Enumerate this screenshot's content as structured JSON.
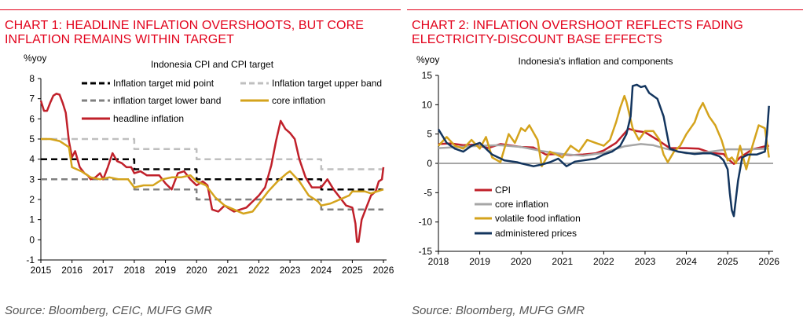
{
  "charts": [
    {
      "heading": "CHART 1: HEADLINE INFLATION OVERSHOOTS, BUT CORE INFLATION REMAINS WITHIN TARGET",
      "source": "Source: Bloomberg, CEIC, MUFG GMR"
    },
    {
      "heading": "CHART 2: INFLATION OVERSHOOT REFLECTS FADING ELECTRICITY-DISCOUNT BASE EFFECTS",
      "source": "Source: Bloomberg, MUFG GMR"
    }
  ],
  "colors": {
    "accent": "#e2001a",
    "headline": "#c0202a",
    "core_gold": "#d4a31c",
    "target_mid": "#000000",
    "target_upper": "#bfbfbf",
    "target_lower": "#808080",
    "core_grey": "#a6a6a6",
    "administered": "#13355e"
  },
  "chart_data": [
    {
      "type": "line",
      "title": "Indonesia CPI and CPI target",
      "ylabel": "%yoy",
      "ylim": [
        -1,
        8
      ],
      "xlim": [
        2015,
        2026.1
      ],
      "yticks": [
        -1,
        0,
        1,
        2,
        3,
        4,
        5,
        6,
        7,
        8
      ],
      "xticks": [
        "2015",
        "2016",
        "2017",
        "2018",
        "2019",
        "2020",
        "2021",
        "2022",
        "2023",
        "2024",
        "2025",
        "2026"
      ],
      "legend": "top",
      "series": [
        {
          "name": "Inflation target mid point",
          "style": "dashed",
          "color": "#000000",
          "x": [
            2015.0,
            2018.0,
            2018.0,
            2020.0,
            2020.0,
            2024.0,
            2024.0,
            2026.0
          ],
          "y": [
            4,
            4,
            3.5,
            3.5,
            3,
            3,
            2.5,
            2.5
          ]
        },
        {
          "name": "Inflation target upper band",
          "style": "dashed",
          "color": "#bfbfbf",
          "x": [
            2015.0,
            2018.0,
            2018.0,
            2020.0,
            2020.0,
            2024.0,
            2024.0,
            2026.0
          ],
          "y": [
            5,
            5,
            4.5,
            4.5,
            4,
            4,
            3.5,
            3.5
          ]
        },
        {
          "name": "inflation target lower band",
          "style": "dashed",
          "color": "#808080",
          "x": [
            2015.0,
            2018.0,
            2018.0,
            2020.0,
            2020.0,
            2024.0,
            2024.0,
            2026.0
          ],
          "y": [
            3,
            3,
            2.5,
            2.5,
            2,
            2,
            1.5,
            1.5
          ]
        },
        {
          "name": "headline inflation",
          "style": "solid",
          "color": "#c0202a",
          "x": [
            2015.0,
            2015.1,
            2015.2,
            2015.3,
            2015.4,
            2015.5,
            2015.6,
            2015.7,
            2015.8,
            2015.9,
            2016.0,
            2016.1,
            2016.25,
            2016.4,
            2016.5,
            2016.6,
            2016.75,
            2016.9,
            2017.0,
            2017.15,
            2017.3,
            2017.45,
            2017.6,
            2017.75,
            2017.9,
            2018.0,
            2018.2,
            2018.4,
            2018.6,
            2018.8,
            2019.0,
            2019.2,
            2019.4,
            2019.6,
            2019.8,
            2020.0,
            2020.2,
            2020.35,
            2020.5,
            2020.7,
            2020.9,
            2021.0,
            2021.2,
            2021.4,
            2021.6,
            2021.8,
            2022.0,
            2022.2,
            2022.4,
            2022.55,
            2022.7,
            2022.85,
            2023.0,
            2023.15,
            2023.3,
            2023.5,
            2023.7,
            2023.9,
            2024.0,
            2024.2,
            2024.4,
            2024.6,
            2024.8,
            2025.0,
            2025.1,
            2025.15,
            2025.2,
            2025.3,
            2025.45,
            2025.6,
            2025.75,
            2025.85,
            2025.95,
            2026.0
          ],
          "y": [
            6.9,
            6.4,
            6.4,
            6.8,
            7.15,
            7.25,
            7.2,
            6.8,
            6.3,
            4.9,
            4.1,
            4.4,
            3.6,
            3.3,
            3.2,
            3.0,
            3.1,
            3.3,
            3.0,
            3.6,
            4.3,
            3.9,
            3.8,
            3.6,
            3.6,
            3.3,
            3.4,
            3.2,
            3.2,
            3.2,
            2.8,
            2.5,
            3.3,
            3.4,
            3.0,
            2.7,
            2.9,
            2.7,
            1.5,
            1.4,
            1.7,
            1.6,
            1.4,
            1.5,
            1.6,
            1.9,
            2.2,
            2.6,
            3.7,
            4.9,
            5.9,
            5.5,
            5.3,
            5.0,
            4.0,
            3.1,
            2.6,
            2.6,
            2.6,
            3.0,
            2.5,
            2.1,
            1.7,
            1.6,
            0.8,
            -0.1,
            -0.1,
            1.0,
            1.6,
            2.2,
            2.4,
            2.9,
            3.0,
            3.6
          ]
        },
        {
          "name": "core inflation",
          "style": "solid",
          "color": "#d4a31c",
          "x": [
            2015.0,
            2015.3,
            2015.6,
            2015.9,
            2016.0,
            2016.3,
            2016.6,
            2016.9,
            2017.2,
            2017.5,
            2017.8,
            2018.0,
            2018.3,
            2018.6,
            2018.9,
            2019.2,
            2019.5,
            2019.8,
            2020.0,
            2020.3,
            2020.6,
            2020.9,
            2021.2,
            2021.5,
            2021.8,
            2022.0,
            2022.3,
            2022.6,
            2022.9,
            2023.0,
            2023.3,
            2023.6,
            2023.9,
            2024.0,
            2024.3,
            2024.6,
            2024.9,
            2025.0,
            2025.2,
            2025.4,
            2025.6,
            2025.8,
            2026.0
          ],
          "y": [
            5.0,
            5.0,
            4.9,
            4.6,
            3.6,
            3.4,
            3.1,
            3.0,
            3.1,
            3.0,
            3.0,
            2.6,
            2.7,
            2.7,
            3.0,
            3.1,
            3.1,
            3.2,
            2.9,
            2.7,
            2.1,
            1.7,
            1.5,
            1.3,
            1.4,
            1.8,
            2.4,
            2.9,
            3.3,
            3.4,
            2.9,
            2.2,
            1.9,
            1.7,
            1.8,
            2.0,
            2.2,
            2.4,
            2.4,
            2.4,
            2.3,
            2.4,
            2.5
          ]
        }
      ]
    },
    {
      "type": "line",
      "title": "Indonesia's inflation and components",
      "ylabel": "%yoy",
      "ylim": [
        -15,
        15
      ],
      "xlim": [
        2018,
        2026.1
      ],
      "yticks": [
        -15,
        -10,
        -5,
        0,
        5,
        10,
        15
      ],
      "xticks": [
        "2018",
        "2019",
        "2020",
        "2021",
        "2022",
        "2023",
        "2024",
        "2025",
        "2026"
      ],
      "legend": "bottom-left",
      "series": [
        {
          "name": "CPI",
          "color": "#c0202a",
          "x": [
            2018.0,
            2018.3,
            2018.6,
            2018.9,
            2019.2,
            2019.5,
            2019.8,
            2020.0,
            2020.3,
            2020.6,
            2020.9,
            2021.2,
            2021.5,
            2021.8,
            2022.0,
            2022.3,
            2022.6,
            2022.8,
            2023.0,
            2023.3,
            2023.6,
            2023.9,
            2024.0,
            2024.3,
            2024.6,
            2024.9,
            2025.0,
            2025.15,
            2025.3,
            2025.6,
            2025.9,
            2026.0
          ],
          "y": [
            3.3,
            3.4,
            3.1,
            3.2,
            2.6,
            3.3,
            3.0,
            2.8,
            2.7,
            1.5,
            1.6,
            1.4,
            1.5,
            1.7,
            2.2,
            3.5,
            5.9,
            5.5,
            5.3,
            4.0,
            2.6,
            2.6,
            2.6,
            2.5,
            1.8,
            1.6,
            0.8,
            -0.1,
            1.0,
            2.4,
            2.9,
            3.0
          ]
        },
        {
          "name": "core inflation",
          "color": "#a6a6a6",
          "x": [
            2018.0,
            2018.5,
            2019.0,
            2019.5,
            2020.0,
            2020.5,
            2021.0,
            2021.5,
            2022.0,
            2022.5,
            2022.9,
            2023.2,
            2023.5,
            2024.0,
            2024.5,
            2025.0,
            2025.5,
            2026.0
          ],
          "y": [
            2.6,
            2.8,
            3.0,
            3.1,
            2.8,
            2.1,
            1.6,
            1.3,
            1.8,
            2.9,
            3.3,
            3.1,
            2.5,
            1.7,
            1.9,
            2.4,
            2.4,
            2.5
          ]
        },
        {
          "name": "volatile food inflation",
          "color": "#d4a31c",
          "x": [
            2018.0,
            2018.2,
            2018.4,
            2018.6,
            2018.8,
            2019.0,
            2019.15,
            2019.3,
            2019.5,
            2019.7,
            2019.85,
            2020.0,
            2020.1,
            2020.2,
            2020.4,
            2020.5,
            2020.7,
            2020.85,
            2021.0,
            2021.2,
            2021.4,
            2021.6,
            2021.8,
            2022.0,
            2022.15,
            2022.3,
            2022.4,
            2022.5,
            2022.55,
            2022.7,
            2022.85,
            2023.0,
            2023.2,
            2023.35,
            2023.45,
            2023.55,
            2023.7,
            2023.85,
            2024.0,
            2024.2,
            2024.3,
            2024.4,
            2024.55,
            2024.7,
            2024.85,
            2025.0,
            2025.1,
            2025.2,
            2025.3,
            2025.45,
            2025.6,
            2025.75,
            2025.9,
            2026.0
          ],
          "y": [
            3.0,
            4.5,
            3.0,
            2.5,
            4.0,
            2.5,
            4.5,
            1.0,
            0.2,
            5.0,
            3.5,
            6.0,
            5.5,
            6.5,
            4.0,
            -0.5,
            2.0,
            1.5,
            1.0,
            3.0,
            2.0,
            4.0,
            3.5,
            3.0,
            4.0,
            7.0,
            9.5,
            11.5,
            10.5,
            6.0,
            4.0,
            5.5,
            5.5,
            4.0,
            1.5,
            0.2,
            2.0,
            3.0,
            5.0,
            7.0,
            9.0,
            10.3,
            8.0,
            6.5,
            4.0,
            0.5,
            1.0,
            0.0,
            3.0,
            -1.0,
            3.0,
            6.5,
            6.0,
            1.0
          ]
        },
        {
          "name": "administered prices",
          "color": "#13355e",
          "x": [
            2018.0,
            2018.2,
            2018.4,
            2018.6,
            2018.8,
            2019.0,
            2019.3,
            2019.6,
            2019.9,
            2020.0,
            2020.3,
            2020.5,
            2020.7,
            2020.9,
            2021.1,
            2021.3,
            2021.5,
            2021.8,
            2022.0,
            2022.2,
            2022.4,
            2022.55,
            2022.65,
            2022.7,
            2022.8,
            2022.9,
            2023.0,
            2023.1,
            2023.2,
            2023.3,
            2023.45,
            2023.6,
            2023.8,
            2024.0,
            2024.2,
            2024.4,
            2024.6,
            2024.8,
            2024.9,
            2025.0,
            2025.05,
            2025.1,
            2025.15,
            2025.25,
            2025.35,
            2025.5,
            2025.7,
            2025.9,
            2025.95,
            2026.0
          ],
          "y": [
            5.8,
            3.5,
            2.5,
            2.0,
            3.0,
            3.5,
            1.5,
            0.5,
            0.2,
            0.0,
            -0.5,
            -0.2,
            0.2,
            0.8,
            -0.5,
            0.3,
            0.5,
            0.8,
            1.5,
            2.0,
            3.0,
            5.0,
            8.0,
            13.2,
            13.4,
            13.0,
            13.2,
            12.0,
            11.5,
            11.0,
            8.0,
            2.5,
            2.0,
            1.8,
            1.6,
            1.7,
            1.7,
            1.2,
            0.5,
            -1.0,
            -5.0,
            -8.0,
            -9.0,
            -3.0,
            1.0,
            1.5,
            1.5,
            2.0,
            5.0,
            9.8
          ]
        }
      ]
    }
  ]
}
